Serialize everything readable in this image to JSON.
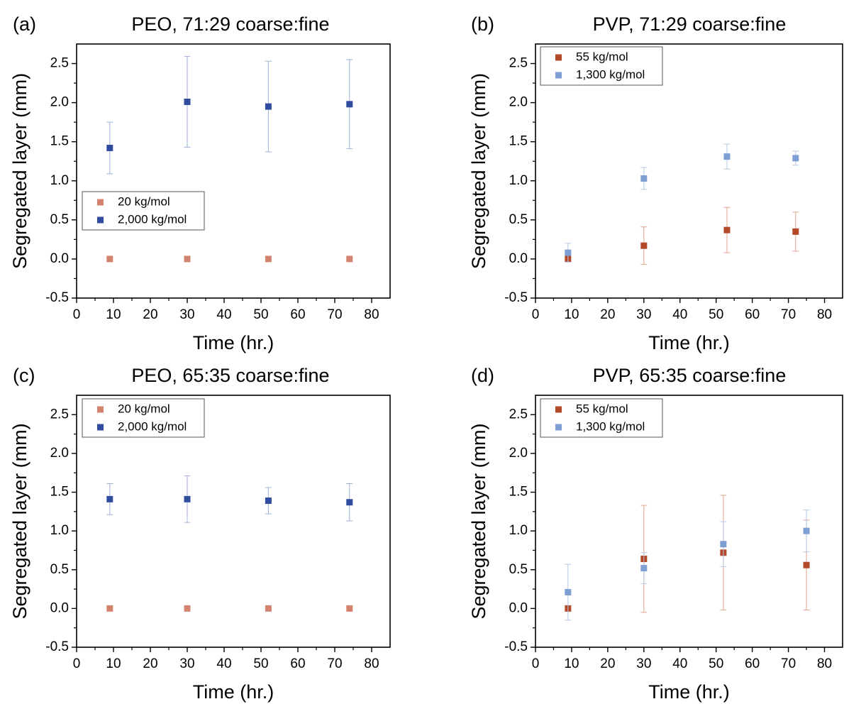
{
  "colors": {
    "peo_20": "#D4846E",
    "peo_2000": "#2F4C9E",
    "pvp_55": "#B4492A",
    "pvp_1300": "#7E9FD4",
    "peo_2000_err": "#9DB1DA",
    "pvp_55_err": "#E0A58F",
    "pvp_1300_err": "#B5C7E6"
  },
  "chart_data": [
    {
      "type": "scatter",
      "letter": "(a)",
      "title": "PEO, 71:29 coarse:fine",
      "xlabel": "Time (hr.)",
      "ylabel": "Segregated layer (mm)",
      "xlim": [
        0,
        85
      ],
      "ylim": [
        -0.5,
        2.75
      ],
      "xticks": [
        "0",
        "10",
        "20",
        "30",
        "40",
        "50",
        "60",
        "70",
        "80"
      ],
      "yticks": [
        "-0.5",
        "0.0",
        "0.5",
        "1.0",
        "1.5",
        "2.0",
        "2.5"
      ],
      "grid": false,
      "legend_placement": "center-left",
      "series": [
        {
          "name": "20 kg/mol",
          "color": "#D4846E",
          "errcolor": "#D4846E",
          "x": [
            9,
            30,
            52,
            74
          ],
          "y": [
            0,
            0,
            0,
            0
          ],
          "err": [
            0,
            0,
            0,
            0
          ]
        },
        {
          "name": "2,000 kg/mol",
          "color": "#2F4C9E",
          "errcolor": "#9DB1DA",
          "x": [
            9,
            30,
            52,
            74
          ],
          "y": [
            1.42,
            2.01,
            1.95,
            1.98
          ],
          "err": [
            0.33,
            0.58,
            0.58,
            0.57
          ]
        }
      ]
    },
    {
      "type": "scatter",
      "letter": "(b)",
      "title": "PVP, 71:29 coarse:fine",
      "xlabel": "Time (hr.)",
      "ylabel": "Segregated layer (mm)",
      "xlim": [
        0,
        85
      ],
      "ylim": [
        -0.5,
        2.75
      ],
      "xticks": [
        "0",
        "10",
        "20",
        "30",
        "40",
        "50",
        "60",
        "70",
        "80"
      ],
      "yticks": [
        "-0.5",
        "0.0",
        "0.5",
        "1.0",
        "1.5",
        "2.0",
        "2.5"
      ],
      "grid": false,
      "legend_placement": "top-left",
      "series": [
        {
          "name": "55 kg/mol",
          "color": "#B4492A",
          "errcolor": "#E0A58F",
          "x": [
            9,
            30,
            53,
            72
          ],
          "y": [
            0,
            0.17,
            0.37,
            0.35
          ],
          "err": [
            0,
            0.24,
            0.29,
            0.25
          ]
        },
        {
          "name": "1,300 kg/mol",
          "color": "#7E9FD4",
          "errcolor": "#B5C7E6",
          "x": [
            9,
            30,
            53,
            72
          ],
          "y": [
            0.08,
            1.03,
            1.31,
            1.29
          ],
          "err": [
            0.12,
            0.14,
            0.16,
            0.09
          ]
        }
      ]
    },
    {
      "type": "scatter",
      "letter": "(c)",
      "title": "PEO, 65:35 coarse:fine",
      "xlabel": "Time (hr.)",
      "ylabel": "Segregated layer (mm)",
      "xlim": [
        0,
        85
      ],
      "ylim": [
        -0.5,
        2.75
      ],
      "xticks": [
        "0",
        "10",
        "20",
        "30",
        "40",
        "50",
        "60",
        "70",
        "80"
      ],
      "yticks": [
        "-0.5",
        "0.0",
        "0.5",
        "1.0",
        "1.5",
        "2.0",
        "2.5"
      ],
      "grid": false,
      "legend_placement": "top-left",
      "series": [
        {
          "name": "20 kg/mol",
          "color": "#D4846E",
          "errcolor": "#D4846E",
          "x": [
            9,
            30,
            52,
            74
          ],
          "y": [
            0,
            0,
            0,
            0
          ],
          "err": [
            0,
            0,
            0,
            0
          ]
        },
        {
          "name": "2,000 kg/mol",
          "color": "#2F4C9E",
          "errcolor": "#9DB1DA",
          "x": [
            9,
            30,
            52,
            74
          ],
          "y": [
            1.41,
            1.41,
            1.39,
            1.37
          ],
          "err": [
            0.2,
            0.3,
            0.17,
            0.24
          ]
        }
      ]
    },
    {
      "type": "scatter",
      "letter": "(d)",
      "title": "PVP, 65:35 coarse:fine",
      "xlabel": "Time (hr.)",
      "ylabel": "Segregated layer (mm)",
      "xlim": [
        0,
        85
      ],
      "ylim": [
        -0.5,
        2.75
      ],
      "xticks": [
        "0",
        "10",
        "20",
        "30",
        "40",
        "50",
        "60",
        "70",
        "80"
      ],
      "yticks": [
        "-0.5",
        "0.0",
        "0.5",
        "1.0",
        "1.5",
        "2.0",
        "2.5"
      ],
      "grid": false,
      "legend_placement": "top-left",
      "series": [
        {
          "name": "55 kg/mol",
          "color": "#B4492A",
          "errcolor": "#E0A58F",
          "x": [
            9,
            30,
            52,
            75
          ],
          "y": [
            0,
            0.64,
            0.72,
            0.56
          ],
          "err": [
            0,
            0.69,
            0.74,
            0.58
          ]
        },
        {
          "name": "1,300 kg/mol",
          "color": "#7E9FD4",
          "errcolor": "#B5C7E6",
          "x": [
            9,
            30,
            52,
            75
          ],
          "y": [
            0.21,
            0.52,
            0.83,
            1.0
          ],
          "err": [
            0.36,
            0.2,
            0.29,
            0.27
          ]
        }
      ]
    }
  ]
}
